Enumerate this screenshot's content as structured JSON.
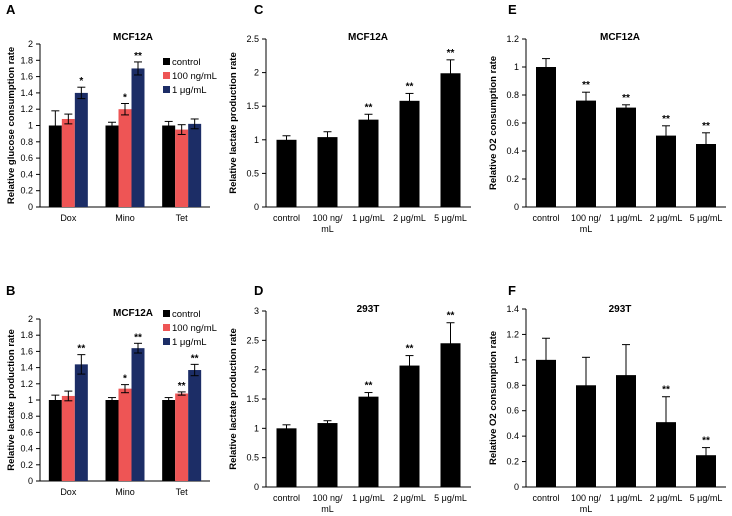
{
  "chart_data": [
    {
      "panel": "A",
      "type": "bar",
      "title": "MCF12A",
      "ylabel": "Relative glucose consumption rate",
      "xlabel": "",
      "ylim": [
        0,
        2
      ],
      "yticks": [
        "0",
        "0.2",
        "0.4",
        "0.6",
        "0.8",
        "1",
        "1.2",
        "1.4",
        "1.6",
        "1.8",
        "2"
      ],
      "categories": [
        "Dox",
        "Mino",
        "Tet"
      ],
      "legend": {
        "position": "top-right",
        "entries": [
          "control",
          "100 ng/mL",
          "1 μg/mL"
        ]
      },
      "series": [
        {
          "name": "control",
          "color": "#000000",
          "values": [
            1.0,
            1.0,
            1.0
          ],
          "errors": [
            0.18,
            0.04,
            0.05
          ],
          "stars": [
            "",
            "",
            ""
          ]
        },
        {
          "name": "100 ng/mL",
          "color": "#ee5555",
          "values": [
            1.08,
            1.2,
            0.95
          ],
          "errors": [
            0.06,
            0.07,
            0.06
          ],
          "stars": [
            "",
            "*",
            ""
          ]
        },
        {
          "name": "1 μg/mL",
          "color": "#1c2d66",
          "values": [
            1.4,
            1.7,
            1.02
          ],
          "errors": [
            0.07,
            0.08,
            0.06
          ],
          "stars": [
            "*",
            "**",
            ""
          ]
        }
      ]
    },
    {
      "panel": "B",
      "type": "bar",
      "title": "MCF12A",
      "ylabel": "Relative lactate production rate",
      "xlabel": "",
      "ylim": [
        0,
        2
      ],
      "yticks": [
        "0",
        "0.2",
        "0.4",
        "0.6",
        "0.8",
        "1",
        "1.2",
        "1.4",
        "1.6",
        "1.8",
        "2"
      ],
      "categories": [
        "Dox",
        "Mino",
        "Tet"
      ],
      "legend": {
        "position": "top-right",
        "entries": [
          "control",
          "100 ng/mL",
          "1 μg/mL"
        ]
      },
      "series": [
        {
          "name": "control",
          "color": "#000000",
          "values": [
            1.0,
            1.0,
            1.0
          ],
          "errors": [
            0.06,
            0.03,
            0.03
          ],
          "stars": [
            "",
            "",
            ""
          ]
        },
        {
          "name": "100 ng/mL",
          "color": "#ee5555",
          "values": [
            1.05,
            1.14,
            1.08
          ],
          "errors": [
            0.06,
            0.05,
            0.02
          ],
          "stars": [
            "",
            "*",
            "**"
          ]
        },
        {
          "name": "1 μg/mL",
          "color": "#1c2d66",
          "values": [
            1.44,
            1.64,
            1.37
          ],
          "errors": [
            0.12,
            0.06,
            0.07
          ],
          "stars": [
            "**",
            "**",
            "**"
          ]
        }
      ]
    },
    {
      "panel": "C",
      "type": "bar",
      "title": "MCF12A",
      "ylabel": "Relative lactate production rate",
      "xlabel": "",
      "ylim": [
        0,
        2.5
      ],
      "yticks": [
        "0",
        "0.5",
        "1",
        "1.5",
        "2",
        "2.5"
      ],
      "categories": [
        "control",
        "100 ng/ mL",
        "1 μg/mL",
        "2 μg/mL",
        "5 μg/mL"
      ],
      "values": [
        1.0,
        1.04,
        1.3,
        1.58,
        1.99
      ],
      "errors": [
        0.06,
        0.08,
        0.08,
        0.11,
        0.2
      ],
      "stars": [
        "",
        "",
        "**",
        "**",
        "**"
      ]
    },
    {
      "panel": "D",
      "type": "bar",
      "title": "293T",
      "ylabel": "Relative lactate production rate",
      "xlabel": "",
      "ylim": [
        0,
        3
      ],
      "yticks": [
        "0",
        "0.5",
        "1",
        "1.5",
        "2",
        "2.5",
        "3"
      ],
      "categories": [
        "control",
        "100 ng/ mL",
        "1 μg/mL",
        "2 μg/mL",
        "5 μg/mL"
      ],
      "values": [
        1.0,
        1.09,
        1.54,
        2.07,
        2.45
      ],
      "errors": [
        0.06,
        0.04,
        0.07,
        0.17,
        0.35
      ],
      "stars": [
        "",
        "",
        "**",
        "**",
        "**"
      ]
    },
    {
      "panel": "E",
      "type": "bar",
      "title": "MCF12A",
      "ylabel": "Relative O2 consumption rate",
      "xlabel": "",
      "ylim": [
        0,
        1.2
      ],
      "yticks": [
        "0",
        "0.2",
        "0.4",
        "0.6",
        "0.8",
        "1",
        "1.2"
      ],
      "categories": [
        "control",
        "100 ng/ mL",
        "1 μg/mL",
        "2 μg/mL",
        "5 μg/mL"
      ],
      "values": [
        1.0,
        0.76,
        0.71,
        0.51,
        0.45
      ],
      "errors": [
        0.06,
        0.06,
        0.02,
        0.07,
        0.08
      ],
      "stars": [
        "",
        "**",
        "**",
        "**",
        "**"
      ]
    },
    {
      "panel": "F",
      "type": "bar",
      "title": "293T",
      "ylabel": "Relative O2 consumption rate",
      "xlabel": "",
      "ylim": [
        0,
        1.4
      ],
      "yticks": [
        "0",
        "0.2",
        "0.4",
        "0.6",
        "0.8",
        "1",
        "1.2",
        "1.4"
      ],
      "categories": [
        "control",
        "100 ng/ mL",
        "1 μg/mL",
        "2 μg/mL",
        "5 μg/mL"
      ],
      "values": [
        1.0,
        0.8,
        0.88,
        0.51,
        0.25
      ],
      "errors": [
        0.17,
        0.22,
        0.24,
        0.2,
        0.06
      ],
      "stars": [
        "",
        "",
        "",
        "**",
        "**"
      ]
    }
  ]
}
